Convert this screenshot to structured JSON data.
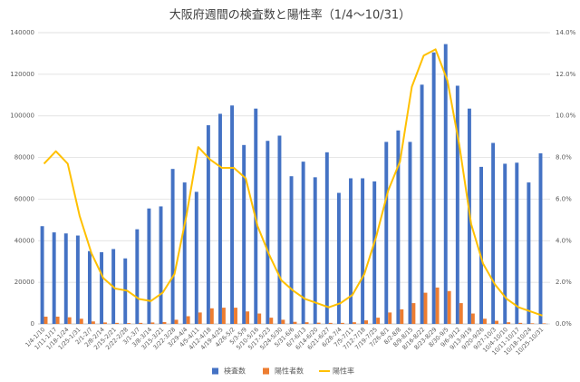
{
  "chart_data": {
    "type": "bar-line",
    "title": "大阪府週間の検査数と陽性率（1/4～10/31）",
    "categories": [
      "1/4-1/10",
      "1/11-1/17",
      "1/18-1/24",
      "1/25-1/31",
      "2/1-2/7",
      "2/8-2/14",
      "2/15-2/21",
      "2/22-2/28",
      "3/1-3/7",
      "3/8-3/14",
      "3/15-3/21",
      "3/22-3/28",
      "3/29-4/4",
      "4/5-4/11",
      "4/12-4/18",
      "4/19-4/25",
      "4/26-5/2",
      "5/3-5/9",
      "5/10-5/16",
      "5/17-5/23",
      "5/24-5/30",
      "5/31-6/6",
      "6/7-6/13",
      "6/14-6/20",
      "6/21-6/27",
      "6/28-7/4",
      "7/5-7/11",
      "7/12-7/18",
      "7/19-7/25",
      "7/26-8/1",
      "8/2-8/8",
      "8/9-8/15",
      "8/16-8/22",
      "8/23-8/29",
      "8/30-9/5",
      "9/6-9/12",
      "9/13-9/19",
      "9/20-9/26",
      "9/27-10/3",
      "10/4-10/10",
      "10/11-10/17",
      "10/18-10/24",
      "10/25-10/31"
    ],
    "series": [
      {
        "name": "検査数",
        "color": "#4472c4",
        "kind": "bar",
        "values": [
          47000,
          44000,
          43500,
          42500,
          35000,
          34500,
          36000,
          31500,
          45500,
          55500,
          56500,
          74500,
          68000,
          63500,
          95500,
          101000,
          105000,
          86000,
          103500,
          88000,
          90500,
          71000,
          78000,
          70500,
          82500,
          63000,
          70000,
          70000,
          68500,
          87500,
          93000,
          87500,
          115000,
          130500,
          134500,
          114500,
          103500,
          75500,
          87000,
          77000,
          77500,
          68000,
          82000
        ]
      },
      {
        "name": "陽性者数",
        "color": "#ed7d31",
        "kind": "bar",
        "values": [
          3500,
          3500,
          3200,
          2500,
          1200,
          700,
          500,
          400,
          500,
          700,
          900,
          2000,
          3700,
          5500,
          7500,
          7800,
          7800,
          6000,
          5000,
          3000,
          2000,
          1000,
          800,
          600,
          500,
          500,
          800,
          1700,
          3000,
          5500,
          7000,
          10000,
          15000,
          17500,
          15800,
          10000,
          5000,
          2500,
          1500,
          800,
          500,
          300,
          250
        ]
      },
      {
        "name": "陽性率",
        "color": "#ffc000",
        "kind": "line",
        "axis": "y2",
        "values": [
          7.7,
          8.3,
          7.7,
          5.2,
          3.4,
          2.2,
          1.7,
          1.6,
          1.2,
          1.1,
          1.5,
          2.4,
          5.2,
          8.5,
          7.9,
          7.5,
          7.5,
          7.0,
          4.7,
          3.3,
          2.1,
          1.6,
          1.2,
          1.0,
          0.8,
          1.0,
          1.4,
          2.4,
          4.2,
          6.4,
          7.8,
          11.4,
          12.9,
          13.2,
          11.7,
          8.6,
          4.8,
          2.9,
          1.9,
          1.2,
          0.8,
          0.6,
          0.4
        ]
      }
    ],
    "ylim": [
      0,
      140000
    ],
    "yticks": [
      0,
      20000,
      40000,
      60000,
      80000,
      100000,
      120000,
      140000
    ],
    "y2lim": [
      0,
      14
    ],
    "y2ticks": [
      {
        "value": 0,
        "label": "0.0%"
      },
      {
        "value": 2,
        "label": "2.0%"
      },
      {
        "value": 4,
        "label": "4.0%"
      },
      {
        "value": 6,
        "label": "6.0%"
      },
      {
        "value": 8,
        "label": "8.0%"
      },
      {
        "value": 10,
        "label": "10.0%"
      },
      {
        "value": 12,
        "label": "12.0%"
      },
      {
        "value": 14,
        "label": "14.0%"
      }
    ],
    "grid": true,
    "legend": "bottom"
  }
}
